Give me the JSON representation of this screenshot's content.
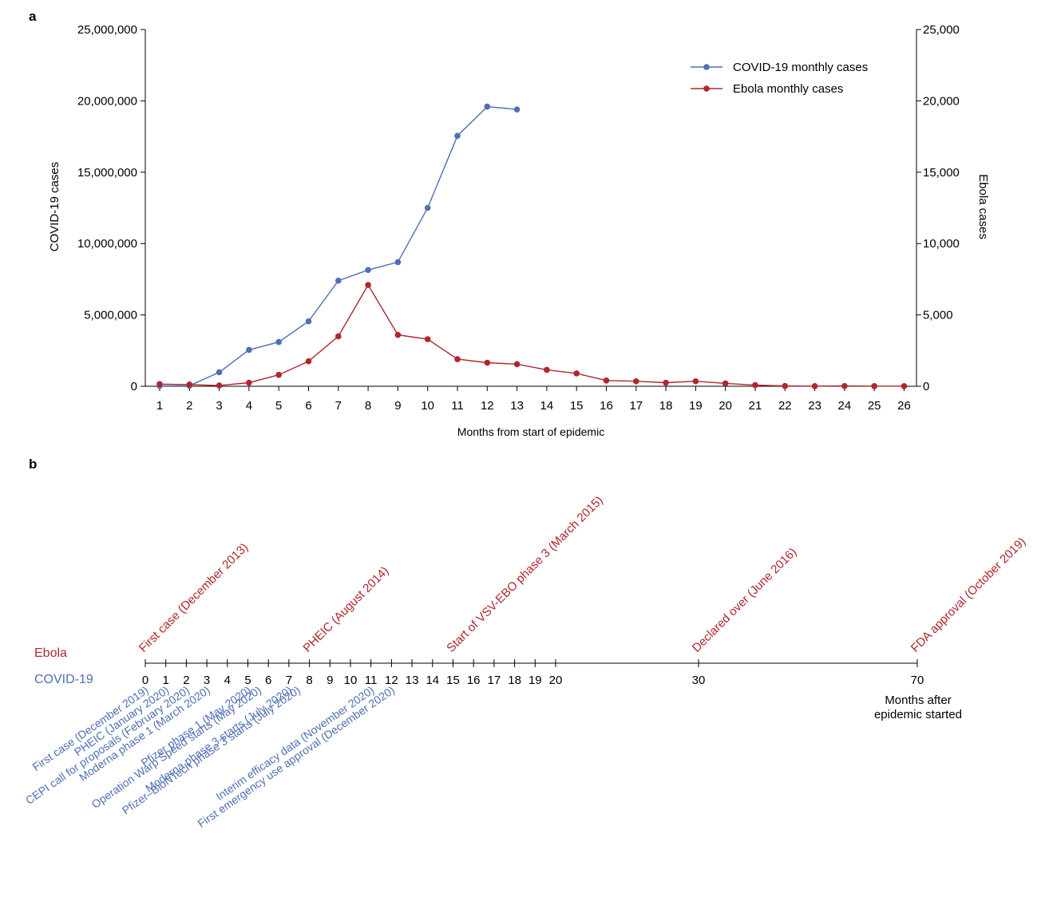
{
  "colors": {
    "covid": "#4f6fb5",
    "ebola": "#b0262b",
    "axis": "#000000"
  },
  "chart_data": [
    {
      "panel_label": "a",
      "type": "line",
      "xlabel": "Months from start of epidemic",
      "x": [
        1,
        2,
        3,
        4,
        5,
        6,
        7,
        8,
        9,
        10,
        11,
        12,
        13,
        14,
        15,
        16,
        17,
        18,
        19,
        20,
        21,
        22,
        23,
        24,
        25,
        26
      ],
      "x_ticks": [
        "1",
        "2",
        "3",
        "4",
        "5",
        "6",
        "7",
        "8",
        "9",
        "10",
        "11",
        "12",
        "13",
        "14",
        "15",
        "16",
        "17",
        "18",
        "19",
        "20",
        "21",
        "22",
        "23",
        "24",
        "25",
        "26"
      ],
      "y_left": {
        "label": "COVID-19 cases",
        "range": [
          0,
          25000000
        ],
        "ticks": [
          "0",
          "5,000,000",
          "10,000,000",
          "15,000,000",
          "20,000,000",
          "25,000,000"
        ],
        "tick_values": [
          0,
          5000000,
          10000000,
          15000000,
          20000000,
          25000000
        ]
      },
      "y_right": {
        "label": "Ebola cases",
        "range": [
          0,
          25000
        ],
        "ticks": [
          "0",
          "5,000",
          "10,000",
          "15,000",
          "20,000",
          "25,000"
        ],
        "tick_values": [
          0,
          5000,
          10000,
          15000,
          20000,
          25000
        ]
      },
      "legend_position": "top-right",
      "series": [
        {
          "name": "COVID-19 monthly cases",
          "axis": "left",
          "color": "#4f6fb5",
          "x": [
            1,
            2,
            3,
            4,
            5,
            6,
            7,
            8,
            9,
            10,
            11,
            12,
            13
          ],
          "values": [
            30000,
            40000,
            980000,
            2550000,
            3100000,
            4550000,
            7400000,
            8150000,
            8700000,
            12500000,
            17550000,
            19600000,
            19400000
          ]
        },
        {
          "name": "Ebola monthly cases",
          "axis": "right",
          "color": "#b0262b",
          "x": [
            1,
            2,
            3,
            4,
            5,
            6,
            7,
            8,
            9,
            10,
            11,
            12,
            13,
            14,
            15,
            16,
            17,
            18,
            19,
            20,
            21,
            22,
            23,
            24,
            25,
            26
          ],
          "values": [
            150,
            120,
            50,
            250,
            800,
            1750,
            3500,
            7100,
            3600,
            3300,
            1900,
            1650,
            1550,
            1150,
            900,
            400,
            350,
            250,
            350,
            200,
            80,
            20,
            10,
            20,
            10,
            10
          ]
        }
      ]
    },
    {
      "panel_label": "b",
      "type": "timeline",
      "row_labels": {
        "ebola": "Ebola",
        "covid": "COVID-19"
      },
      "axis_title": [
        "Months after",
        "epidemic started"
      ],
      "tick_labels": [
        {
          "month": 0,
          "label": "0"
        },
        {
          "month": 1,
          "label": "1"
        },
        {
          "month": 2,
          "label": "2"
        },
        {
          "month": 3,
          "label": "3"
        },
        {
          "month": 4,
          "label": "4"
        },
        {
          "month": 5,
          "label": "5"
        },
        {
          "month": 6,
          "label": "6"
        },
        {
          "month": 7,
          "label": "7"
        },
        {
          "month": 8,
          "label": "8"
        },
        {
          "month": 9,
          "label": "9"
        },
        {
          "month": 10,
          "label": "10"
        },
        {
          "month": 11,
          "label": "11"
        },
        {
          "month": 12,
          "label": "12"
        },
        {
          "month": 13,
          "label": "13"
        },
        {
          "month": 14,
          "label": "14"
        },
        {
          "month": 15,
          "label": "15"
        },
        {
          "month": 16,
          "label": "16"
        },
        {
          "month": 17,
          "label": "17"
        },
        {
          "month": 18,
          "label": "18"
        },
        {
          "month": 19,
          "label": "19"
        },
        {
          "month": 20,
          "label": "20"
        },
        {
          "month": 30,
          "label": "30"
        },
        {
          "month": 70,
          "label": "70"
        }
      ],
      "ebola_events": [
        {
          "month": 0,
          "label": "First case (December 2013)"
        },
        {
          "month": 8,
          "label": "PHEIC (August 2014)"
        },
        {
          "month": 15,
          "label": "Start of VSV-EBO phase 3 (March 2015)"
        },
        {
          "month": 30,
          "label": "Declared over (June 2016)"
        },
        {
          "month": 70,
          "label": "FDA approval (October 2019)"
        }
      ],
      "covid_events": [
        {
          "month": 0,
          "label": "First case (December 2019)"
        },
        {
          "month": 1,
          "label": "PHEIC (January 2020)"
        },
        {
          "month": 2,
          "label": "CEPI call for proposals (February 2020)"
        },
        {
          "month": 3,
          "label": "Moderna phase 1 (March 2020)"
        },
        {
          "month": 5,
          "label": "Pfizer phase 1 (May 2020)"
        },
        {
          "month": 5.5,
          "label": "Operation Warp Speed starts (May 2020)"
        },
        {
          "month": 7,
          "label": "Moderna phase 3 starts (July 2020)"
        },
        {
          "month": 7.4,
          "label": "Pfizer–BioNTech phase 3 starts (July 2020)"
        },
        {
          "month": 11,
          "label": "Interim efficacy data (November 2020)"
        },
        {
          "month": 12,
          "label": "First emergency use approval (December 2020)"
        }
      ]
    }
  ]
}
